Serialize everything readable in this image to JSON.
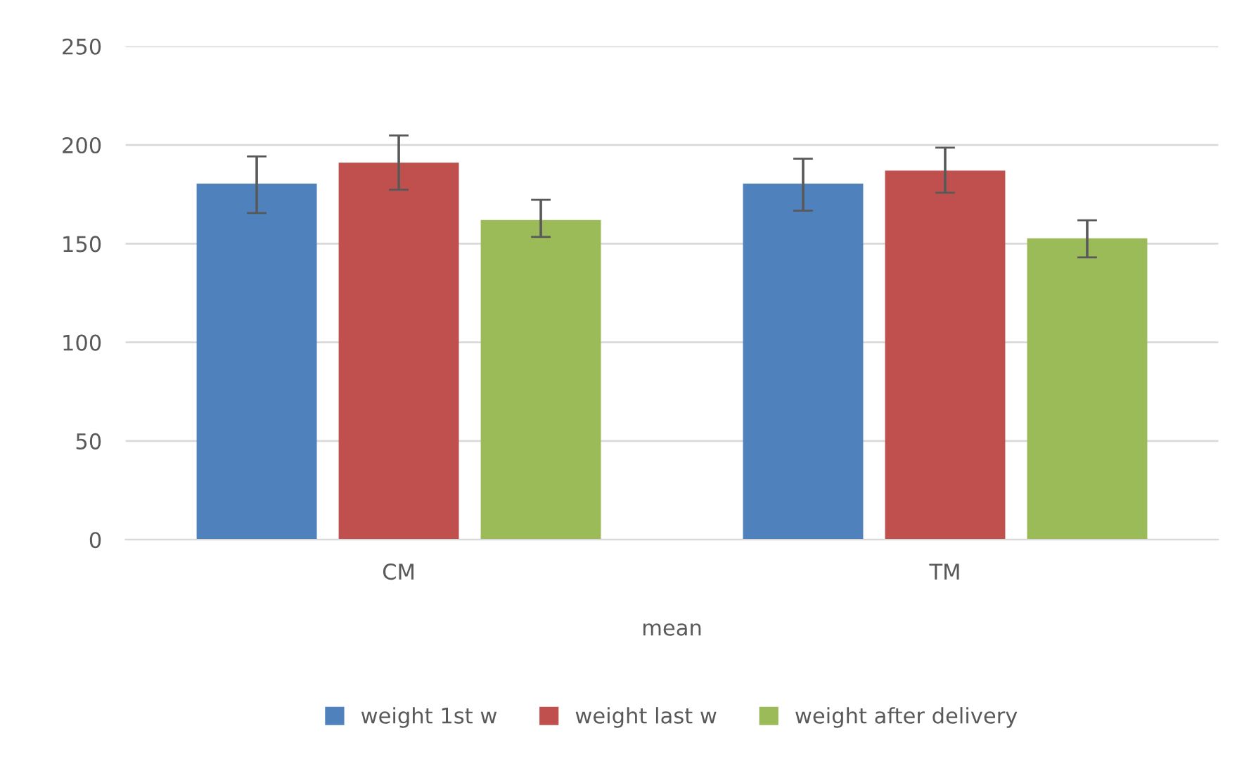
{
  "chart_data": {
    "type": "bar",
    "categories": [
      "CM",
      "TM"
    ],
    "xlabel": "mean",
    "series": [
      {
        "name": "weight 1st w",
        "color": "#4f81bd",
        "values": [
          180.4,
          180.4
        ],
        "errors": [
          [
            165.5,
            194.2
          ],
          [
            166.7,
            193
          ]
        ]
      },
      {
        "name": "weight last w",
        "color": "#c0504d",
        "values": [
          191,
          187
        ],
        "errors": [
          [
            177.3,
            204.8
          ],
          [
            175.8,
            198.6
          ]
        ]
      },
      {
        "name": "weight after delivery",
        "color": "#9bbb59",
        "values": [
          162,
          152.7
        ],
        "errors": [
          [
            153.4,
            172.2
          ],
          [
            143,
            161.8
          ]
        ]
      }
    ],
    "ylim": [
      0,
      250
    ],
    "yticks": [
      0,
      50,
      100,
      150,
      200,
      250
    ],
    "grid": "y",
    "legend": "bottom"
  }
}
